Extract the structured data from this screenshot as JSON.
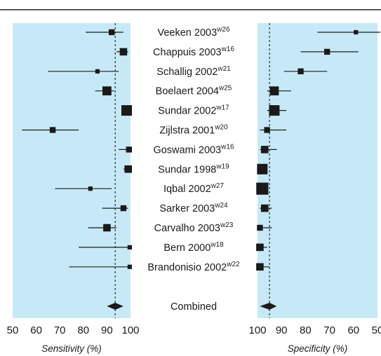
{
  "chart_data": [
    {
      "type": "forest",
      "title": "",
      "xlabel": "Sensitivity (%)",
      "xlim": [
        50,
        100
      ],
      "xticks": [
        "50",
        "60",
        "70",
        "80",
        "90",
        "100"
      ],
      "reference_line": 93.5,
      "studies": [
        {
          "label": "Veeken 2003",
          "ref": "w26",
          "estimate": 92,
          "lower": 81,
          "upper": 97,
          "weight": 2
        },
        {
          "label": "Chappuis 2003",
          "ref": "w16",
          "estimate": 97,
          "lower": 94,
          "upper": 99,
          "weight": 3
        },
        {
          "label": "Schallig 2002",
          "ref": "w21",
          "estimate": 86,
          "lower": 65,
          "upper": 95,
          "weight": 1
        },
        {
          "label": "Boelaert 2004",
          "ref": "w25",
          "estimate": 90,
          "lower": 85,
          "upper": 93,
          "weight": 4
        },
        {
          "label": "Sundar 2002",
          "ref": "w17",
          "estimate": 100,
          "lower": 99,
          "upper": 100,
          "weight": 5
        },
        {
          "label": "Zijlstra 2001",
          "ref": "w20",
          "estimate": 67,
          "lower": 54,
          "upper": 78,
          "weight": 2
        },
        {
          "label": "Goswami 2003",
          "ref": "w16",
          "estimate": 100,
          "lower": 95,
          "upper": 100,
          "weight": 2
        },
        {
          "label": "Sundar 1998",
          "ref": "w19",
          "estimate": 100,
          "lower": 97,
          "upper": 100,
          "weight": 3
        },
        {
          "label": "Iqbal 2002",
          "ref": "w27",
          "estimate": 83,
          "lower": 68,
          "upper": 92,
          "weight": 1
        },
        {
          "label": "Sarker 2003",
          "ref": "w24",
          "estimate": 97,
          "lower": 88,
          "upper": 99,
          "weight": 2
        },
        {
          "label": "Carvalho 2003",
          "ref": "w23",
          "estimate": 90,
          "lower": 82,
          "upper": 94,
          "weight": 3
        },
        {
          "label": "Bern 2000",
          "ref": "w18",
          "estimate": 100,
          "lower": 78,
          "upper": 100,
          "weight": 1
        },
        {
          "label": "Brandonisio 2002",
          "ref": "w22",
          "estimate": 100,
          "lower": 74,
          "upper": 100,
          "weight": 1
        }
      ],
      "combined": {
        "label": "Combined",
        "estimate": 93.5,
        "lower": 90,
        "upper": 97
      }
    },
    {
      "type": "forest",
      "title": "",
      "xlabel": "Specificity (%)",
      "xlim": [
        100,
        50
      ],
      "xticks": [
        "100",
        "90",
        "80",
        "70",
        "60",
        "50"
      ],
      "reference_line": 95,
      "studies": [
        {
          "label": "Veeken 2003",
          "estimate": 59,
          "lower": 48,
          "upper": 75,
          "weight": 1
        },
        {
          "label": "Chappuis 2003",
          "estimate": 71,
          "lower": 58,
          "upper": 82,
          "weight": 2
        },
        {
          "label": "Schallig 2002",
          "estimate": 82,
          "lower": 71,
          "upper": 89,
          "weight": 2
        },
        {
          "label": "Boelaert 2004",
          "estimate": 93,
          "lower": 86,
          "upper": 96,
          "weight": 4
        },
        {
          "label": "Sundar 2002",
          "estimate": 93,
          "lower": 88,
          "upper": 96,
          "weight": 5
        },
        {
          "label": "Zijlstra 2001",
          "estimate": 96,
          "lower": 88,
          "upper": 99,
          "weight": 2
        },
        {
          "label": "Goswami 2003",
          "estimate": 97,
          "lower": 92,
          "upper": 99,
          "weight": 3
        },
        {
          "label": "Sundar 1998",
          "estimate": 98,
          "lower": 96,
          "upper": 100,
          "weight": 5
        },
        {
          "label": "Iqbal 2002",
          "estimate": 98,
          "lower": 96,
          "upper": 100,
          "weight": 6
        },
        {
          "label": "Sarker 2003",
          "estimate": 97,
          "lower": 94,
          "upper": 99,
          "weight": 3
        },
        {
          "label": "Carvalho 2003",
          "estimate": 99,
          "lower": 94,
          "upper": 100,
          "weight": 2
        },
        {
          "label": "Bern 2000",
          "estimate": 99,
          "lower": 96,
          "upper": 100,
          "weight": 3
        },
        {
          "label": "Brandonisio 2002",
          "estimate": 99,
          "lower": 95,
          "upper": 100,
          "weight": 3
        }
      ],
      "combined": {
        "label": "Combined",
        "estimate": 95,
        "lower": 92,
        "upper": 99
      }
    }
  ],
  "colors": {
    "panel_bg": "#c7e9f7",
    "ink": "#1a1a1a",
    "rule": "#333333"
  }
}
